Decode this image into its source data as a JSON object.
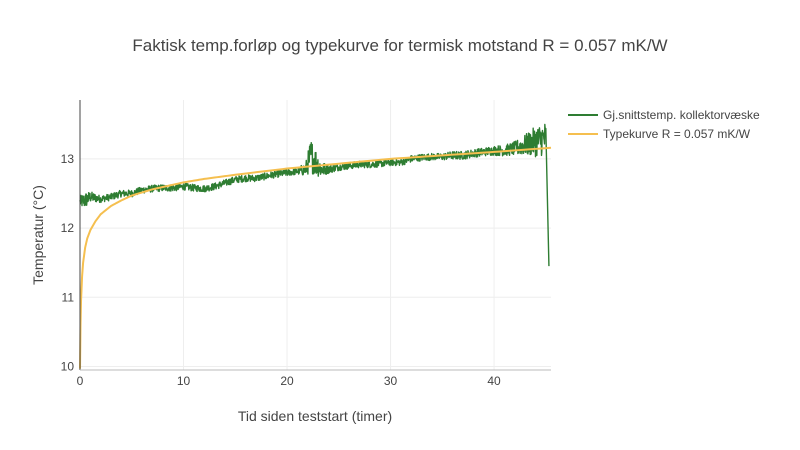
{
  "chart_data": {
    "type": "line",
    "title": "Faktisk temp.forløp og typekurve for termisk motstand R = 0.057 mK/W",
    "xlabel": "Tid siden teststart (timer)",
    "ylabel": "Temperatur (°C)",
    "xlim": [
      0,
      45.5
    ],
    "ylim": [
      9.95,
      13.85
    ],
    "x_ticks": [
      0,
      10,
      20,
      30,
      40
    ],
    "y_ticks": [
      10,
      11,
      12,
      13
    ],
    "grid": true,
    "legend_position": "top-right",
    "series": [
      {
        "name": "Gj.snittstemp. kollektorvæske",
        "color": "#2e7d32",
        "style": "noisy measured",
        "x": [
          0,
          0.5,
          1,
          2,
          3,
          4,
          5,
          6,
          7,
          8,
          9,
          10,
          11,
          12,
          13,
          14,
          15,
          16,
          17,
          18,
          19,
          20,
          21,
          21.8,
          22.3,
          22.8,
          23.3,
          24,
          25,
          26,
          27,
          28,
          29,
          30,
          31,
          32,
          33,
          34,
          35,
          36,
          37,
          38,
          39,
          40,
          41,
          42,
          43,
          44,
          45,
          45.3
        ],
        "y": [
          12.38,
          12.4,
          12.45,
          12.42,
          12.45,
          12.5,
          12.5,
          12.55,
          12.57,
          12.58,
          12.58,
          12.6,
          12.58,
          12.57,
          12.6,
          12.65,
          12.7,
          12.72,
          12.72,
          12.75,
          12.78,
          12.8,
          12.82,
          12.85,
          13.05,
          12.95,
          12.85,
          12.85,
          12.88,
          12.9,
          12.92,
          12.92,
          12.93,
          12.95,
          12.95,
          13.0,
          13.02,
          13.03,
          13.03,
          13.05,
          13.05,
          13.08,
          13.1,
          13.12,
          13.12,
          13.15,
          13.2,
          13.25,
          13.3,
          11.45
        ],
        "noise_amplitude": [
          0.08,
          0.12,
          0.08,
          0.05,
          0.05,
          0.05,
          0.05,
          0.05,
          0.05,
          0.05,
          0.05,
          0.05,
          0.05,
          0.05,
          0.05,
          0.05,
          0.05,
          0.05,
          0.05,
          0.05,
          0.05,
          0.05,
          0.05,
          0.1,
          0.25,
          0.2,
          0.12,
          0.06,
          0.05,
          0.05,
          0.05,
          0.05,
          0.05,
          0.05,
          0.05,
          0.05,
          0.05,
          0.05,
          0.05,
          0.06,
          0.06,
          0.06,
          0.06,
          0.07,
          0.08,
          0.1,
          0.15,
          0.22,
          0.25,
          0.0
        ]
      },
      {
        "name": "Typekurve R = 0.057 mK/W",
        "color": "#f5bf4f",
        "style": "smooth",
        "x": [
          0,
          0.05,
          0.1,
          0.2,
          0.3,
          0.5,
          0.7,
          1,
          1.5,
          2,
          3,
          4,
          5,
          7,
          10,
          12,
          15,
          20,
          25,
          30,
          35,
          40,
          45.5
        ],
        "y": [
          9.97,
          10.6,
          10.95,
          11.3,
          11.5,
          11.72,
          11.85,
          11.97,
          12.1,
          12.2,
          12.32,
          12.4,
          12.47,
          12.56,
          12.66,
          12.71,
          12.77,
          12.86,
          12.93,
          13.0,
          13.05,
          13.1,
          13.16
        ]
      }
    ]
  }
}
